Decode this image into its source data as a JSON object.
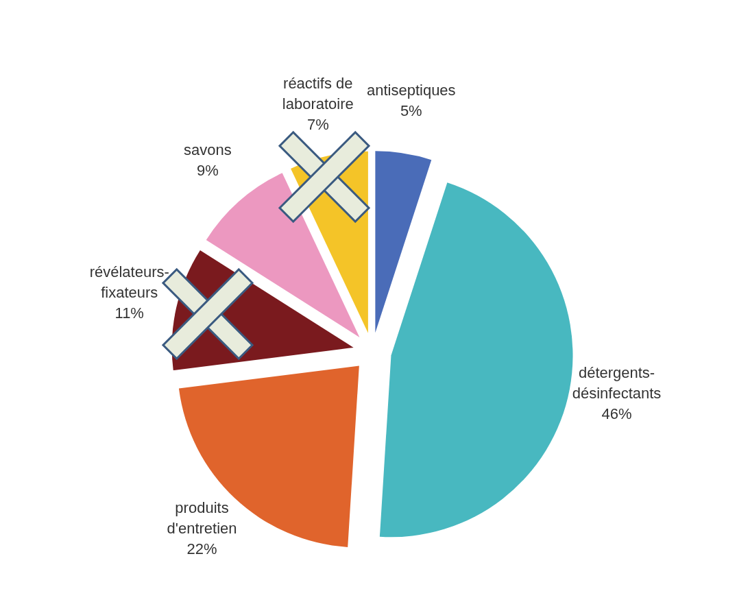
{
  "chart_data": {
    "type": "pie",
    "categories": [
      "antiseptiques",
      "détergents-désinfectants",
      "produits d'entretien",
      "révélateurs-fixateurs",
      "savons",
      "réactifs de laboratoire"
    ],
    "values": [
      5,
      46,
      22,
      11,
      9,
      7
    ],
    "value_labels": [
      "5%",
      "46%",
      "22%",
      "11%",
      "9%",
      "7%"
    ],
    "colors": [
      "#4a6cb8",
      "#48b8c0",
      "#e0642c",
      "#7a1a1e",
      "#ec98c0",
      "#f4c428"
    ],
    "legend": false
  }
}
